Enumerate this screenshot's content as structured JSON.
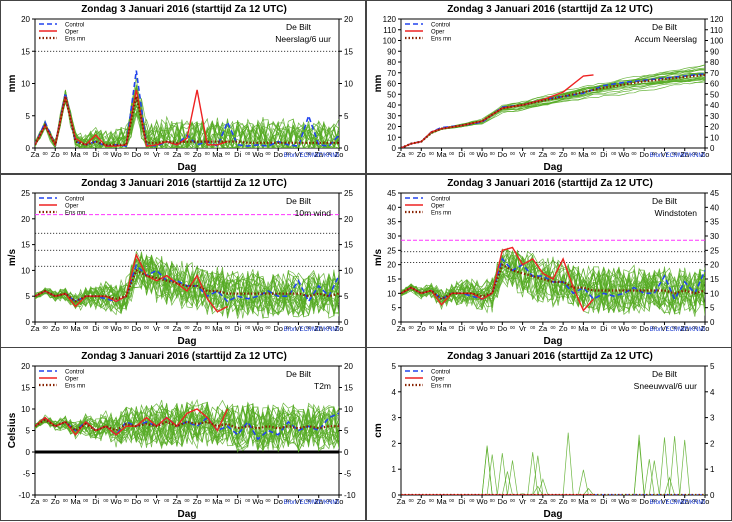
{
  "header": {
    "day": "Zondag",
    "date": "3 Januari  2016",
    "run": "(starttijd  Za 12 UTC)"
  },
  "station": "De Bilt",
  "source": "Bron: ECMWF/KNMI",
  "xlabel": "Dag",
  "day_labels": [
    "Za",
    "Zo",
    "Ma",
    "Di",
    "Wo",
    "Do",
    "Vr",
    "Za",
    "Zo",
    "Ma",
    "Di",
    "Wo",
    "Do",
    "Vr",
    "Za",
    "Zo"
  ],
  "legend": [
    "Control",
    "Oper",
    "Ens mn"
  ],
  "colors": {
    "control": "#2244ee",
    "oper": "#ee2222",
    "ensmean": "#882200",
    "members": "#55aa22",
    "threshold": "#ff33ff"
  },
  "chart_data": [
    {
      "type": "line",
      "subtitle": "Neerslag/6 uur",
      "ylabel": "mm",
      "ylim": [
        0,
        20
      ],
      "yticks": [
        0,
        5,
        10,
        15,
        20
      ],
      "xlim": [
        0,
        15
      ],
      "legend": true,
      "ref_lines": [
        15
      ],
      "series": [
        {
          "name": "Control",
          "x": [
            0,
            0.5,
            1,
            1.5,
            2,
            2.5,
            3,
            3.5,
            4,
            4.5,
            5,
            5.5,
            6,
            6.5,
            7,
            7.5,
            8,
            8.5,
            9,
            9.5,
            10,
            10.5,
            11,
            11.5,
            12,
            12.5,
            13,
            13.5,
            14,
            14.5,
            15
          ],
          "values": [
            0.5,
            4,
            0.5,
            8.5,
            1,
            0.5,
            1,
            0.3,
            0.5,
            0.3,
            12,
            0.5,
            0.3,
            1,
            0.5,
            2,
            0.5,
            1,
            0.3,
            4,
            0.5,
            0.3,
            0.5,
            0.3,
            1,
            0.5,
            0.3,
            5,
            0.5,
            0.3,
            2
          ]
        },
        {
          "name": "Oper",
          "x": [
            0,
            0.5,
            1,
            1.5,
            2,
            2.5,
            3,
            3.5,
            4,
            4.5,
            5,
            5.5,
            6,
            6.5,
            7,
            7.5,
            8,
            8.5,
            9,
            9.5
          ],
          "values": [
            0.5,
            3.5,
            0.5,
            8,
            1.5,
            0.5,
            2,
            0.3,
            0.3,
            0.5,
            9,
            0.3,
            0.5,
            1,
            0.5,
            1.5,
            9,
            0.5,
            0.5,
            1
          ]
        },
        {
          "name": "Ens mn",
          "x": [
            0,
            0.5,
            1,
            1.5,
            2,
            2.5,
            3,
            3.5,
            4,
            4.5,
            5,
            5.5,
            6,
            6.5,
            7,
            7.5,
            8,
            8.5,
            9,
            9.5,
            10,
            10.5,
            11,
            11.5,
            12,
            12.5,
            13,
            13.5,
            14,
            14.5,
            15
          ],
          "values": [
            0.5,
            3.5,
            0.5,
            8,
            1,
            0.5,
            1,
            0.5,
            0.5,
            0.5,
            8,
            0.8,
            0.8,
            1,
            0.8,
            1,
            1,
            1,
            1,
            1,
            1,
            0.8,
            0.8,
            0.8,
            0.8,
            0.8,
            0.8,
            0.8,
            0.8,
            0.8,
            0.8
          ]
        }
      ]
    },
    {
      "type": "line",
      "subtitle": "Accum Neerslag",
      "ylabel": "mm",
      "ylim": [
        0,
        120
      ],
      "yticks": [
        0,
        10,
        20,
        30,
        40,
        50,
        60,
        70,
        80,
        90,
        100,
        110,
        120
      ],
      "xlim": [
        0,
        15
      ],
      "legend": true,
      "ref_lines": [],
      "series": [
        {
          "name": "Control",
          "x": [
            0,
            0.5,
            1,
            1.5,
            2,
            3,
            4,
            5,
            6,
            7,
            8,
            9,
            10,
            11,
            12,
            13,
            14,
            15
          ],
          "values": [
            0,
            4,
            6,
            15,
            19,
            21,
            24,
            38,
            40,
            45,
            48,
            51,
            58,
            61,
            63,
            65,
            67,
            69
          ]
        },
        {
          "name": "Oper",
          "x": [
            0,
            0.5,
            1,
            1.5,
            2,
            3,
            4,
            5,
            6,
            7,
            8,
            9,
            9.5
          ],
          "values": [
            0,
            4,
            6,
            15,
            18,
            21,
            25,
            37,
            40,
            45,
            52,
            67,
            68
          ]
        },
        {
          "name": "Ens mn",
          "x": [
            0,
            0.5,
            1,
            1.5,
            2,
            3,
            4,
            5,
            6,
            7,
            8,
            9,
            10,
            11,
            12,
            13,
            14,
            15
          ],
          "values": [
            0,
            4,
            6,
            14,
            18,
            21,
            25,
            37,
            40,
            44,
            48,
            52,
            56,
            59,
            62,
            64,
            66,
            68
          ]
        }
      ]
    },
    {
      "type": "line",
      "subtitle": "10m wind",
      "ylabel": "m/s",
      "ylim": [
        0,
        25
      ],
      "yticks": [
        0,
        5,
        10,
        15,
        20,
        25
      ],
      "xlim": [
        0,
        15
      ],
      "legend": true,
      "ref_lines": [
        10.8,
        13.9,
        17.2
      ],
      "threshold": 20.8,
      "series": [
        {
          "name": "Control",
          "x": [
            0,
            0.5,
            1,
            1.5,
            2,
            2.5,
            3,
            3.5,
            4,
            4.5,
            5,
            5.5,
            6,
            6.5,
            7,
            7.5,
            8,
            8.5,
            9,
            9.5,
            10,
            10.5,
            11,
            11.5,
            12,
            12.5,
            13,
            13.5,
            14,
            14.5,
            15
          ],
          "values": [
            5,
            6,
            5,
            5.5,
            4,
            5,
            5,
            4.5,
            4,
            5,
            11,
            9,
            10,
            8,
            8,
            7,
            7,
            5,
            6,
            4,
            5,
            4.5,
            5,
            6,
            5,
            5,
            8,
            4,
            7,
            5,
            9
          ]
        },
        {
          "name": "Oper",
          "x": [
            0,
            0.5,
            1,
            1.5,
            2,
            2.5,
            3,
            3.5,
            4,
            4.5,
            5,
            5.5,
            6,
            6.5,
            7,
            7.5,
            8,
            8.5,
            9,
            9.5
          ],
          "values": [
            5,
            6,
            5,
            5.5,
            3,
            5,
            5,
            5,
            4,
            5,
            13,
            9,
            8,
            9,
            7.5,
            6,
            9,
            4.5,
            2,
            3
          ]
        },
        {
          "name": "Ens mn",
          "x": [
            0,
            0.5,
            1,
            1.5,
            2,
            2.5,
            3,
            3.5,
            4,
            4.5,
            5,
            5.5,
            6,
            6.5,
            7,
            7.5,
            8,
            8.5,
            9,
            9.5,
            10,
            10.5,
            11,
            11.5,
            12,
            12.5,
            13,
            13.5,
            14,
            14.5,
            15
          ],
          "values": [
            5,
            6,
            5,
            5.5,
            4,
            5,
            5,
            5,
            4.5,
            5,
            10,
            9,
            8.5,
            8,
            7.5,
            7,
            7,
            6,
            6,
            5.5,
            5.5,
            5.5,
            5.5,
            5.5,
            5.5,
            5.5,
            5.5,
            5,
            5.5,
            5,
            5.5
          ]
        }
      ]
    },
    {
      "type": "line",
      "subtitle": "Windstoten",
      "ylabel": "m/s",
      "ylim": [
        0,
        45
      ],
      "yticks": [
        0,
        5,
        10,
        15,
        20,
        25,
        30,
        35,
        40,
        45
      ],
      "xlim": [
        0,
        15
      ],
      "legend": true,
      "ref_lines": [
        20.8,
        24.5
      ],
      "threshold": 28.5,
      "series": [
        {
          "name": "Control",
          "x": [
            0,
            0.5,
            1,
            1.5,
            2,
            2.5,
            3,
            3.5,
            4,
            4.5,
            5,
            5.5,
            6,
            6.5,
            7,
            7.5,
            8,
            8.5,
            9,
            9.5,
            10,
            10.5,
            11,
            11.5,
            12,
            12.5,
            13,
            13.5,
            14,
            14.5,
            15
          ],
          "values": [
            10,
            12,
            10,
            11,
            8,
            10,
            10,
            9,
            8,
            10,
            22,
            18,
            20,
            16,
            16,
            14,
            14,
            10,
            12,
            8,
            10,
            9,
            10,
            12,
            10,
            10,
            16,
            8,
            14,
            10,
            18
          ]
        },
        {
          "name": "Oper",
          "x": [
            0,
            0.5,
            1,
            1.5,
            2,
            2.5,
            3,
            3.5,
            4,
            4.5,
            5,
            5.5,
            6,
            6.5,
            7,
            7.5,
            8,
            8.5,
            9,
            9.5
          ],
          "values": [
            10,
            12,
            10,
            11,
            6,
            10,
            10,
            10,
            8,
            10,
            25,
            26,
            20,
            22,
            17,
            15,
            22,
            12,
            4,
            8
          ]
        },
        {
          "name": "Ens mn",
          "x": [
            0,
            0.5,
            1,
            1.5,
            2,
            2.5,
            3,
            3.5,
            4,
            4.5,
            5,
            5.5,
            6,
            6.5,
            7,
            7.5,
            8,
            8.5,
            9,
            9.5,
            10,
            10.5,
            11,
            11.5,
            12,
            12.5,
            13,
            13.5,
            14,
            14.5,
            15
          ],
          "values": [
            10,
            12,
            10,
            11,
            8,
            10,
            10,
            10,
            9,
            10,
            20,
            18,
            17,
            16,
            15,
            14,
            14,
            12,
            12,
            11,
            11,
            11,
            11,
            11,
            11,
            11,
            11,
            10,
            11,
            10,
            11
          ]
        }
      ]
    },
    {
      "type": "line",
      "subtitle": "T2m",
      "ylabel": "Celsius",
      "ylim": [
        -10,
        20
      ],
      "yticks": [
        -10,
        -5,
        0,
        5,
        10,
        15,
        20
      ],
      "xlim": [
        0,
        15
      ],
      "legend": true,
      "ref_lines": [],
      "zero_line": true,
      "series": [
        {
          "name": "Control",
          "x": [
            0,
            0.5,
            1,
            1.5,
            2,
            2.5,
            3,
            3.5,
            4,
            4.5,
            5,
            5.5,
            6,
            6.5,
            7,
            7.5,
            8,
            8.5,
            9,
            9.5,
            10,
            10.5,
            11,
            11.5,
            12,
            12.5,
            13,
            13.5,
            14,
            14.5,
            15
          ],
          "values": [
            6,
            8,
            6,
            7,
            5,
            7,
            5,
            6,
            4,
            7,
            6,
            7,
            6,
            8,
            6,
            7,
            6,
            8,
            5,
            6,
            4,
            7,
            3,
            5,
            4,
            7,
            5,
            6,
            5,
            8,
            9
          ]
        },
        {
          "name": "Oper",
          "x": [
            0,
            0.5,
            1,
            1.5,
            2,
            2.5,
            3,
            3.5,
            4,
            4.5,
            5,
            5.5,
            6,
            6.5,
            7,
            7.5,
            8,
            8.5,
            9,
            9.5
          ],
          "values": [
            6,
            8,
            6,
            7,
            4,
            7,
            5,
            6,
            4,
            6,
            6,
            8,
            6,
            8,
            6,
            9,
            10,
            8,
            5,
            10
          ]
        },
        {
          "name": "Ens mn",
          "x": [
            0,
            0.5,
            1,
            1.5,
            2,
            2.5,
            3,
            3.5,
            4,
            4.5,
            5,
            5.5,
            6,
            6.5,
            7,
            7.5,
            8,
            8.5,
            9,
            9.5,
            10,
            10.5,
            11,
            11.5,
            12,
            12.5,
            13,
            13.5,
            14,
            14.5,
            15
          ],
          "values": [
            6,
            7.5,
            6,
            7,
            5,
            6.5,
            5,
            6,
            5,
            6.5,
            6,
            6.5,
            6,
            7,
            6,
            7,
            6.5,
            7,
            6,
            6.5,
            5.5,
            6,
            5.5,
            6,
            5.5,
            6,
            5.5,
            6,
            5.5,
            6,
            6
          ]
        }
      ]
    },
    {
      "type": "line",
      "subtitle": "Sneeuwval/6 uur",
      "ylabel": "cm",
      "ylim": [
        0,
        5
      ],
      "yticks": [
        0,
        1,
        2,
        3,
        4,
        5
      ],
      "xlim": [
        0,
        15
      ],
      "legend": true,
      "ref_lines": [],
      "series": [
        {
          "name": "Control",
          "x": [
            0,
            15
          ],
          "values": [
            0,
            0
          ]
        },
        {
          "name": "Oper",
          "x": [
            0,
            9.5
          ],
          "values": [
            0,
            0
          ]
        },
        {
          "name": "Ens mn",
          "x": [
            0,
            15
          ],
          "values": [
            0,
            0
          ]
        }
      ]
    }
  ]
}
